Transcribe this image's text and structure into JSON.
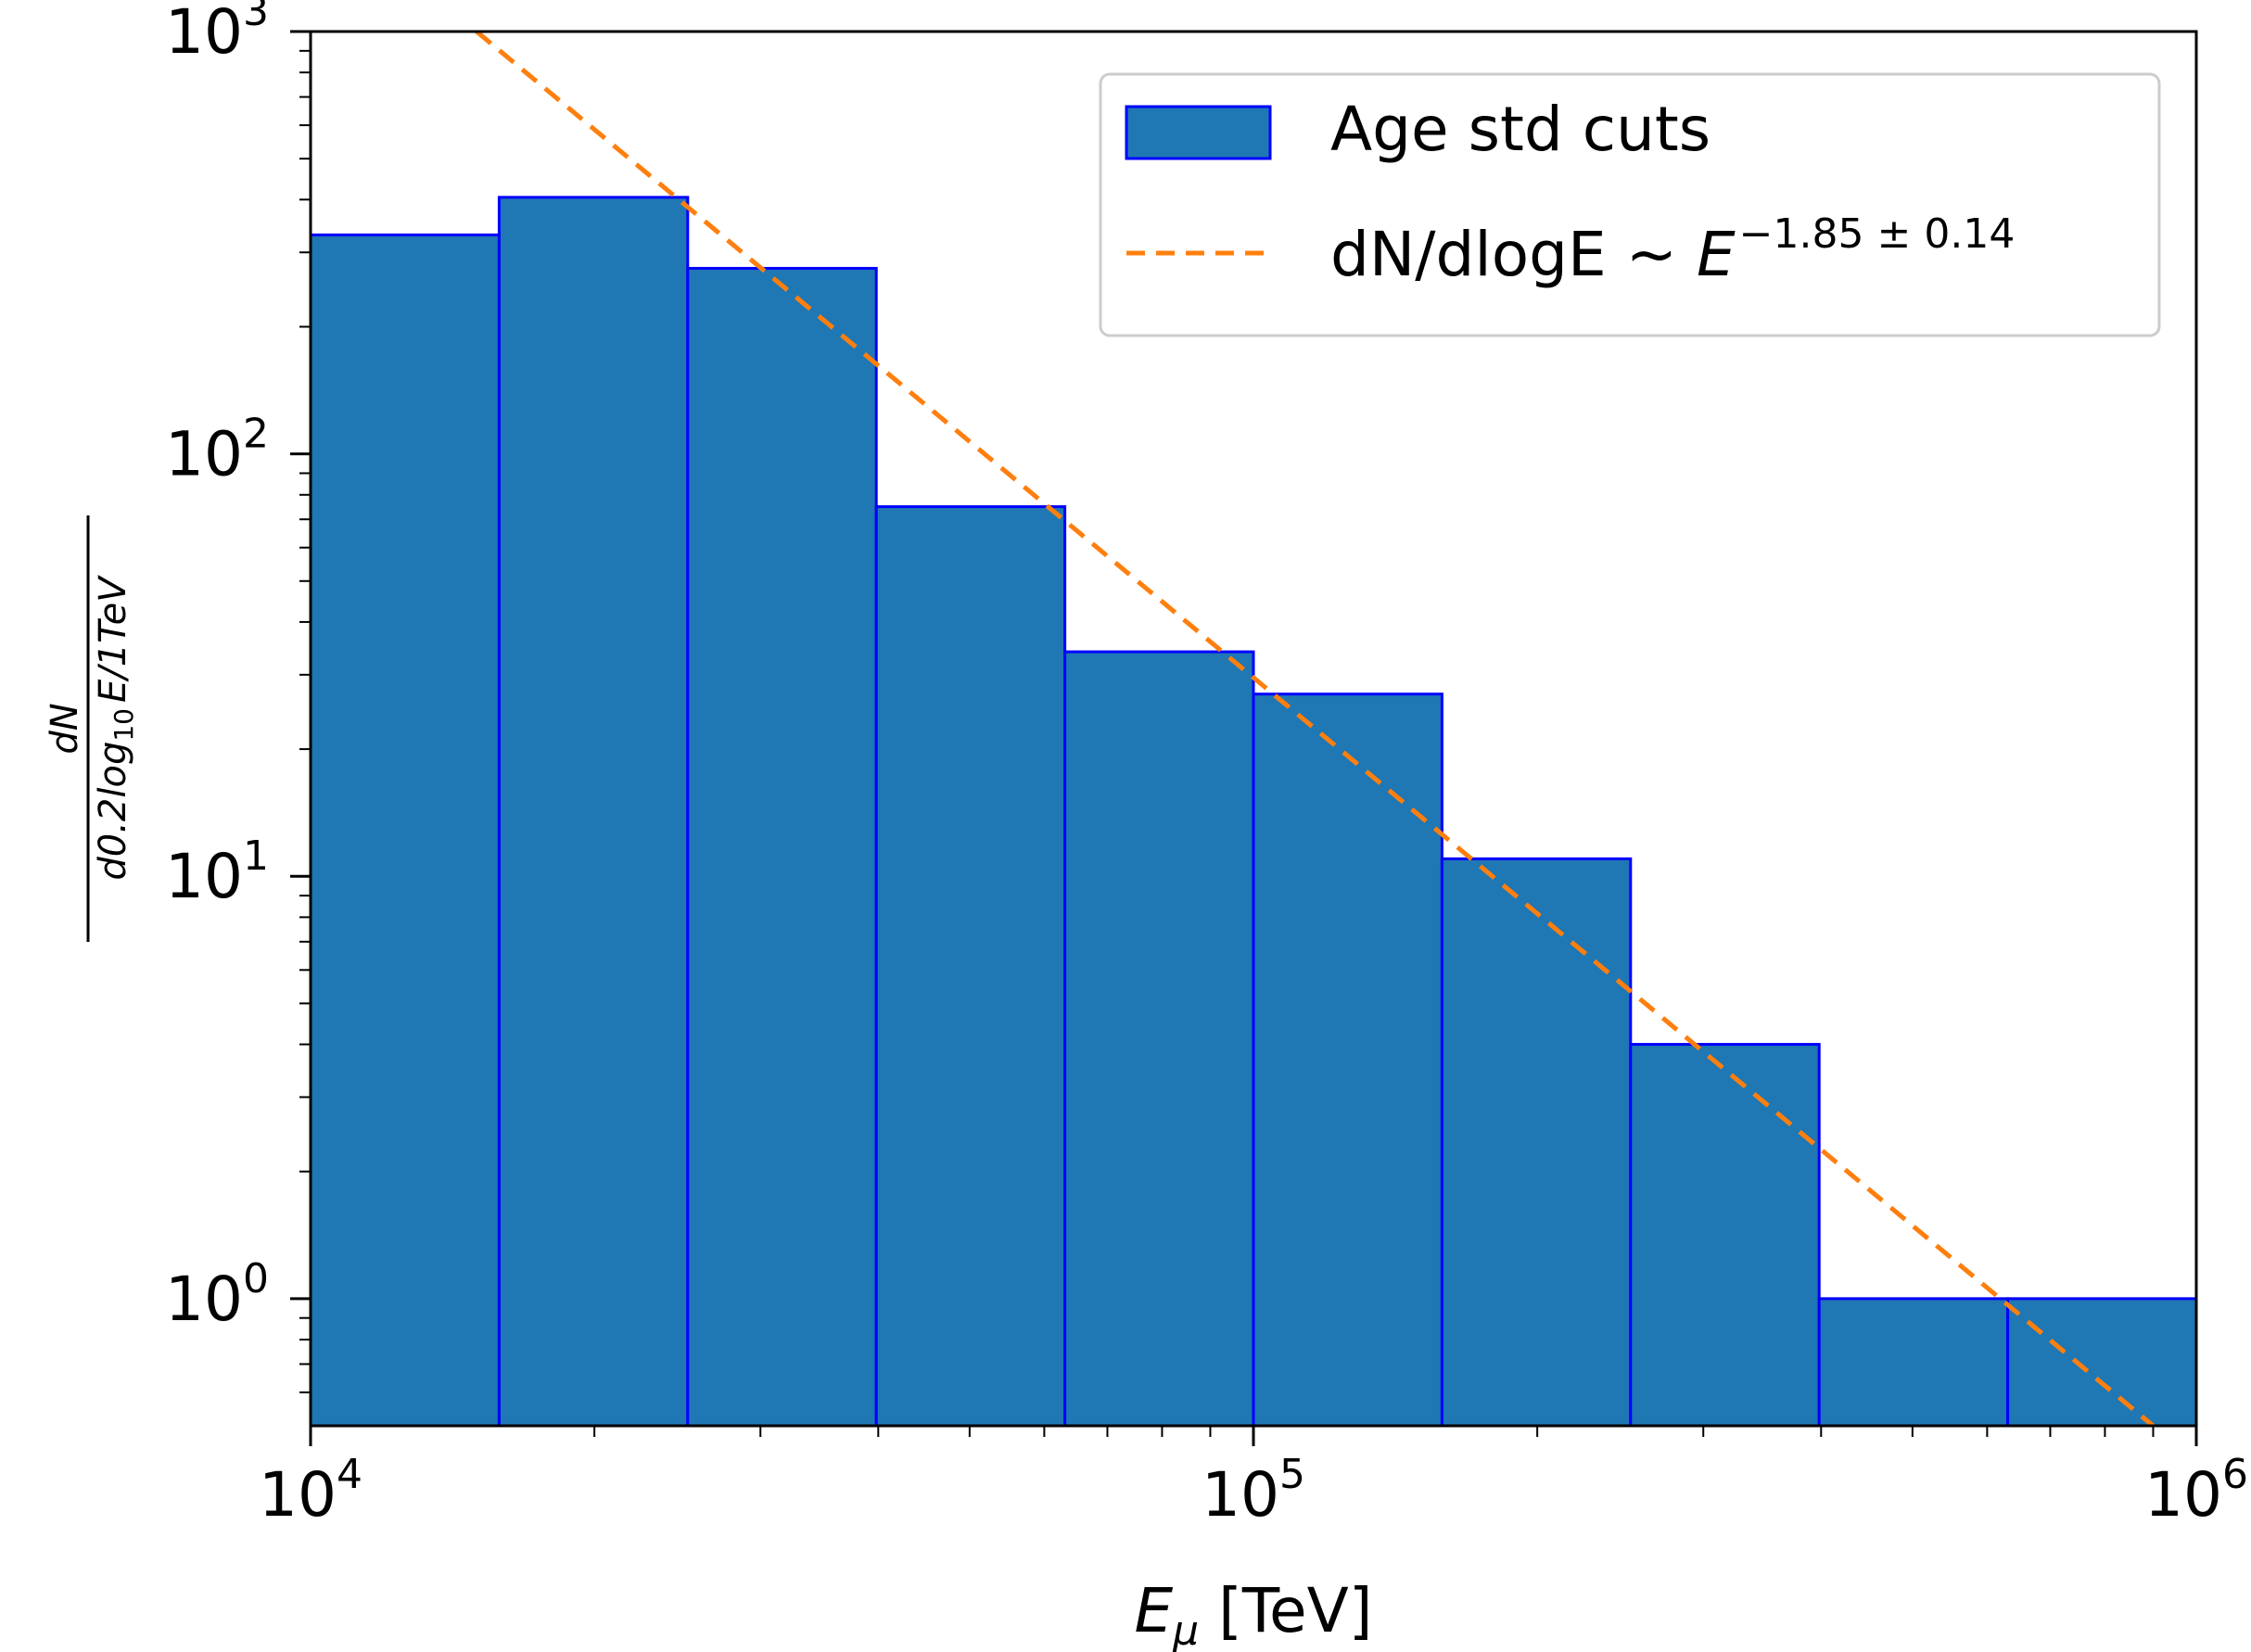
{
  "chart_data": {
    "type": "bar",
    "xscale": "log",
    "yscale": "log",
    "xlim": [
      10000,
      1000000
    ],
    "ylim": [
      0.5,
      1000
    ],
    "xlabel_symbol": "E",
    "xlabel_subscript": "μ",
    "xlabel_unit": "[TeV]",
    "ylabel_numerator": "dN",
    "ylabel_den_prefix": "d0.2log",
    "ylabel_den_sub": "10",
    "ylabel_den_suffix": "E/1TeV",
    "x_ticks": [
      {
        "value": 10000,
        "base": "10",
        "exp": "4"
      },
      {
        "value": 100000,
        "base": "10",
        "exp": "5"
      },
      {
        "value": 1000000,
        "base": "10",
        "exp": "6"
      }
    ],
    "y_ticks": [
      {
        "value": 1,
        "base": "10",
        "exp": "0"
      },
      {
        "value": 10,
        "base": "10",
        "exp": "1"
      },
      {
        "value": 100,
        "base": "10",
        "exp": "2"
      },
      {
        "value": 1000,
        "base": "10",
        "exp": "3"
      }
    ],
    "histogram": {
      "name": "Age std cuts",
      "color": "#1f77b4",
      "edge_color": "#0000ff",
      "bin_edges": [
        10000,
        15849,
        25119,
        39811,
        63096,
        100000,
        158489,
        251189,
        398107,
        630957,
        1000000
      ],
      "values": [
        330,
        405,
        275,
        75,
        34,
        27,
        11,
        4,
        1,
        1
      ]
    },
    "fit_line": {
      "name_text": "dN/dlogE ~ ",
      "name_symbol": "E",
      "name_exponent": "−1.85 ± 0.14",
      "color": "#ff7f0e",
      "style": "dashed",
      "points": [
        [
          15000,
          1000
        ],
        [
          900000,
          0.5
        ]
      ]
    },
    "legend_position": "top-right",
    "grid": false
  }
}
